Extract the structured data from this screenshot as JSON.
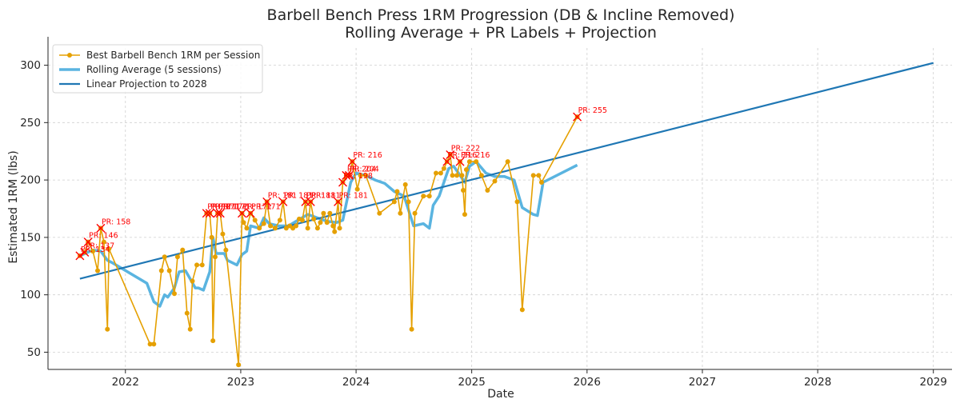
{
  "chart_data": {
    "type": "line",
    "title": "Barbell Bench Press 1RM Progression (DB & Incline Removed)",
    "subtitle": "Rolling Average + PR Labels + Projection",
    "xlabel": "Date",
    "ylabel": "Estimated 1RM (lbs)",
    "xlim": [
      "2021-05-01",
      "2029-03-01"
    ],
    "ylim": [
      35,
      315
    ],
    "x_ticks": [
      "2022",
      "2023",
      "2024",
      "2025",
      "2026",
      "2027",
      "2028",
      "2029"
    ],
    "y_ticks": [
      50,
      100,
      150,
      200,
      250,
      300
    ],
    "grid": true,
    "legend_position": "top-left",
    "colors": {
      "best": "#e5a000",
      "rolling": "#5ab4e0",
      "projection": "#1f77b4",
      "pr": "#ff0000"
    },
    "series": [
      {
        "name": "Best Barbell Bench 1RM per Session",
        "style": "line+markers",
        "points": [
          [
            "2021-08-10",
            134
          ],
          [
            "2021-08-25",
            137
          ],
          [
            "2021-09-05",
            146
          ],
          [
            "2021-09-20",
            138
          ],
          [
            "2021-10-05",
            121
          ],
          [
            "2021-10-15",
            158
          ],
          [
            "2021-10-25",
            146
          ],
          [
            "2021-11-05",
            70
          ],
          [
            "2021-11-10",
            140
          ],
          [
            "2022-03-20",
            57
          ],
          [
            "2022-04-01",
            57
          ],
          [
            "2022-04-25",
            121
          ],
          [
            "2022-05-05",
            133
          ],
          [
            "2022-05-20",
            121
          ],
          [
            "2022-06-05",
            101
          ],
          [
            "2022-06-15",
            133
          ],
          [
            "2022-07-01",
            139
          ],
          [
            "2022-07-15",
            84
          ],
          [
            "2022-07-25",
            70
          ],
          [
            "2022-08-01",
            112
          ],
          [
            "2022-08-15",
            126
          ],
          [
            "2022-09-01",
            126
          ],
          [
            "2022-09-15",
            171
          ],
          [
            "2022-09-25",
            171
          ],
          [
            "2022-10-01",
            150
          ],
          [
            "2022-10-05",
            60
          ],
          [
            "2022-10-12",
            133
          ],
          [
            "2022-10-20",
            171
          ],
          [
            "2022-10-28",
            171
          ],
          [
            "2022-11-05",
            153
          ],
          [
            "2022-11-15",
            139
          ],
          [
            "2022-12-25",
            39
          ],
          [
            "2023-01-05",
            171
          ],
          [
            "2023-01-10",
            163
          ],
          [
            "2023-01-20",
            158
          ],
          [
            "2023-02-01",
            171
          ],
          [
            "2023-02-15",
            165
          ],
          [
            "2023-03-01",
            158
          ],
          [
            "2023-03-15",
            162
          ],
          [
            "2023-03-25",
            181
          ],
          [
            "2023-04-05",
            160
          ],
          [
            "2023-04-20",
            158
          ],
          [
            "2023-05-05",
            165
          ],
          [
            "2023-05-15",
            181
          ],
          [
            "2023-05-25",
            158
          ],
          [
            "2023-06-05",
            160
          ],
          [
            "2023-06-15",
            158
          ],
          [
            "2023-06-25",
            160
          ],
          [
            "2023-07-05",
            166
          ],
          [
            "2023-07-15",
            165
          ],
          [
            "2023-07-25",
            181
          ],
          [
            "2023-08-01",
            158
          ],
          [
            "2023-08-10",
            181
          ],
          [
            "2023-08-20",
            166
          ],
          [
            "2023-09-01",
            158
          ],
          [
            "2023-09-10",
            163
          ],
          [
            "2023-09-20",
            171
          ],
          [
            "2023-10-01",
            163
          ],
          [
            "2023-10-10",
            171
          ],
          [
            "2023-10-20",
            160
          ],
          [
            "2023-10-25",
            155
          ],
          [
            "2023-11-05",
            181
          ],
          [
            "2023-11-10",
            158
          ],
          [
            "2023-11-20",
            198
          ],
          [
            "2023-12-01",
            204
          ],
          [
            "2023-12-10",
            204
          ],
          [
            "2023-12-20",
            216
          ],
          [
            "2024-01-05",
            192
          ],
          [
            "2024-01-15",
            204
          ],
          [
            "2024-02-01",
            204
          ],
          [
            "2024-03-15",
            171
          ],
          [
            "2024-05-01",
            181
          ],
          [
            "2024-05-10",
            190
          ],
          [
            "2024-05-20",
            171
          ],
          [
            "2024-06-05",
            196
          ],
          [
            "2024-06-15",
            181
          ],
          [
            "2024-06-25",
            70
          ],
          [
            "2024-07-05",
            171
          ],
          [
            "2024-08-01",
            186
          ],
          [
            "2024-08-20",
            186
          ],
          [
            "2024-09-10",
            206
          ],
          [
            "2024-09-25",
            206
          ],
          [
            "2024-10-05",
            210
          ],
          [
            "2024-10-15",
            216
          ],
          [
            "2024-10-25",
            222
          ],
          [
            "2024-11-01",
            204
          ],
          [
            "2024-11-15",
            204
          ],
          [
            "2024-11-25",
            216
          ],
          [
            "2024-12-01",
            204
          ],
          [
            "2024-12-05",
            191
          ],
          [
            "2024-12-10",
            170
          ],
          [
            "2024-12-15",
            209
          ],
          [
            "2024-12-25",
            216
          ],
          [
            "2025-01-15",
            216
          ],
          [
            "2025-02-01",
            204
          ],
          [
            "2025-02-20",
            191
          ],
          [
            "2025-03-15",
            199
          ],
          [
            "2025-04-25",
            216
          ],
          [
            "2025-05-25",
            181
          ],
          [
            "2025-06-10",
            87
          ],
          [
            "2025-07-15",
            204
          ],
          [
            "2025-08-01",
            204
          ],
          [
            "2025-08-10",
            198
          ],
          [
            "2025-12-01",
            255
          ]
        ]
      },
      {
        "name": "Rolling Average (5 sessions)",
        "style": "line",
        "points": [
          [
            "2021-08-10",
            134
          ],
          [
            "2021-09-20",
            139
          ],
          [
            "2021-10-15",
            138
          ],
          [
            "2021-11-05",
            130
          ],
          [
            "2021-11-20",
            128
          ],
          [
            "2022-03-10",
            110
          ],
          [
            "2022-04-01",
            94
          ],
          [
            "2022-04-20",
            90
          ],
          [
            "2022-05-05",
            100
          ],
          [
            "2022-05-15",
            98
          ],
          [
            "2022-06-05",
            106
          ],
          [
            "2022-06-20",
            120
          ],
          [
            "2022-07-10",
            121
          ],
          [
            "2022-07-25",
            114
          ],
          [
            "2022-08-10",
            106
          ],
          [
            "2022-08-20",
            106
          ],
          [
            "2022-09-05",
            104
          ],
          [
            "2022-09-25",
            120
          ],
          [
            "2022-10-05",
            150
          ],
          [
            "2022-10-15",
            136
          ],
          [
            "2022-11-10",
            136
          ],
          [
            "2022-11-20",
            130
          ],
          [
            "2022-12-20",
            126
          ],
          [
            "2023-01-05",
            135
          ],
          [
            "2023-01-20",
            138
          ],
          [
            "2023-02-01",
            160
          ],
          [
            "2023-03-01",
            158
          ],
          [
            "2023-03-15",
            167
          ],
          [
            "2023-04-01",
            162
          ],
          [
            "2023-05-01",
            160
          ],
          [
            "2023-06-01",
            160
          ],
          [
            "2023-07-01",
            165
          ],
          [
            "2023-08-01",
            170
          ],
          [
            "2023-09-01",
            167
          ],
          [
            "2023-10-01",
            164
          ],
          [
            "2023-11-01",
            163
          ],
          [
            "2023-11-20",
            165
          ],
          [
            "2023-12-15",
            198
          ],
          [
            "2024-01-01",
            206
          ],
          [
            "2024-02-01",
            204
          ],
          [
            "2024-03-01",
            200
          ],
          [
            "2024-04-01",
            197
          ],
          [
            "2024-05-01",
            190
          ],
          [
            "2024-06-01",
            186
          ],
          [
            "2024-07-01",
            160
          ],
          [
            "2024-08-01",
            162
          ],
          [
            "2024-08-20",
            158
          ],
          [
            "2024-09-01",
            178
          ],
          [
            "2024-09-20",
            186
          ],
          [
            "2024-10-20",
            210
          ],
          [
            "2024-11-05",
            212
          ],
          [
            "2024-11-20",
            206
          ],
          [
            "2024-12-10",
            198
          ],
          [
            "2024-12-25",
            212
          ],
          [
            "2025-01-15",
            216
          ],
          [
            "2025-02-15",
            206
          ],
          [
            "2025-03-15",
            203
          ],
          [
            "2025-04-15",
            203
          ],
          [
            "2025-05-15",
            200
          ],
          [
            "2025-06-10",
            176
          ],
          [
            "2025-07-15",
            170
          ],
          [
            "2025-07-28",
            169
          ],
          [
            "2025-08-15",
            198
          ],
          [
            "2025-12-01",
            213
          ]
        ]
      },
      {
        "name": "Linear Projection to 2028",
        "style": "line",
        "points": [
          [
            "2021-08-10",
            114
          ],
          [
            "2029-01-01",
            302
          ]
        ]
      }
    ],
    "pr_markers": [
      {
        "x": "2021-08-10",
        "y": 134,
        "label": "PR: 134",
        "dy": 0
      },
      {
        "x": "2021-08-25",
        "y": 137,
        "label": "PR: 137",
        "dy": 0
      },
      {
        "x": "2021-09-05",
        "y": 146,
        "label": "PR: 146",
        "dy": 0
      },
      {
        "x": "2021-10-15",
        "y": 158,
        "label": "PR: 158",
        "dy": 0
      },
      {
        "x": "2022-09-15",
        "y": 171,
        "label": "PR: 171",
        "dy": 0
      },
      {
        "x": "2022-09-25",
        "y": 171,
        "label": "PR: 171",
        "dy": 0
      },
      {
        "x": "2022-10-20",
        "y": 171,
        "label": "PR: 171",
        "dy": 0
      },
      {
        "x": "2022-10-28",
        "y": 171,
        "label": "PR: 171",
        "dy": 0
      },
      {
        "x": "2023-01-05",
        "y": 171,
        "label": "PR: 171",
        "dy": 0
      },
      {
        "x": "2023-02-01",
        "y": 171,
        "label": "PR: 171",
        "dy": 0
      },
      {
        "x": "2023-03-25",
        "y": 181,
        "label": "PR: 181",
        "dy": 0
      },
      {
        "x": "2023-05-15",
        "y": 181,
        "label": "PR: 181",
        "dy": 0
      },
      {
        "x": "2023-07-25",
        "y": 181,
        "label": "PR: 181",
        "dy": 0
      },
      {
        "x": "2023-08-10",
        "y": 181,
        "label": "PR: 181",
        "dy": 0
      },
      {
        "x": "2023-11-05",
        "y": 181,
        "label": "PR: 181",
        "dy": 0
      },
      {
        "x": "2023-11-20",
        "y": 198,
        "label": "PR: 198",
        "dy": 0
      },
      {
        "x": "2023-12-01",
        "y": 204,
        "label": "PR: 204",
        "dy": 0
      },
      {
        "x": "2023-12-10",
        "y": 204,
        "label": "PR: 204",
        "dy": 0
      },
      {
        "x": "2023-12-20",
        "y": 216,
        "label": "PR: 216",
        "dy": 0
      },
      {
        "x": "2024-10-15",
        "y": 216,
        "label": "PR: 216",
        "dy": 0
      },
      {
        "x": "2024-10-25",
        "y": 222,
        "label": "PR: 222",
        "dy": 0
      },
      {
        "x": "2024-11-25",
        "y": 216,
        "label": "PR: 216",
        "dy": 0
      },
      {
        "x": "2025-12-01",
        "y": 255,
        "label": "PR: 255",
        "dy": 0
      }
    ]
  }
}
